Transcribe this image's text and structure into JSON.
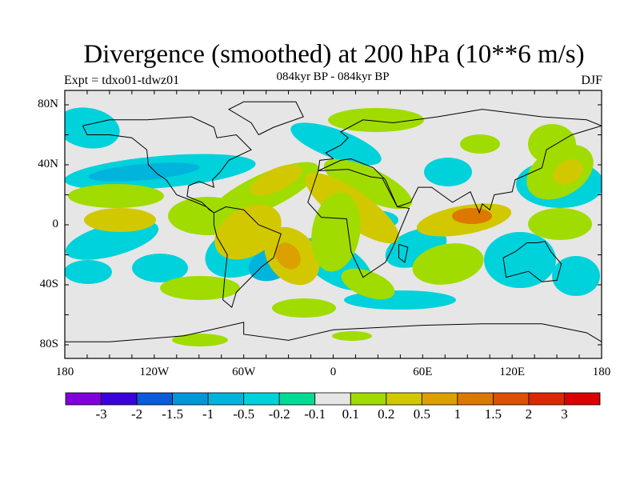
{
  "title": "Divergence (smoothed) at 200 hPa (10**6 m/s)",
  "experiment": "Expt = tdxo01-tdwz01",
  "subtitle": "084kyr BP - 084kyr BP",
  "season": "DJF",
  "chart_data": {
    "type": "heatmap",
    "variable": "Divergence (smoothed) at 200 hPa",
    "units": "10**6 m/s",
    "y_ticks": [
      "80N",
      "40N",
      "0",
      "40S",
      "80S"
    ],
    "y_values": [
      80,
      40,
      0,
      -40,
      -80
    ],
    "x_ticks": [
      "180",
      "120W",
      "60W",
      "0",
      "60E",
      "120E",
      "180"
    ],
    "x_values": [
      -180,
      -120,
      -60,
      0,
      60,
      120,
      180
    ],
    "xlim": [
      -180,
      180
    ],
    "ylim": [
      -90,
      90
    ],
    "colorbar": {
      "labels": [
        "-3",
        "-2",
        "-1.5",
        "-1",
        "-0.5",
        "-0.2",
        "-0.1",
        "0.1",
        "0.2",
        "0.5",
        "1",
        "1.5",
        "2",
        "3"
      ],
      "colors": [
        "#7f00dc",
        "#3c00dc",
        "#0a5adc",
        "#0096dc",
        "#00b4dc",
        "#00d2dc",
        "#00dc96",
        "#e6e6e6",
        "#a0dc00",
        "#d2c800",
        "#dca000",
        "#dc7800",
        "#dc5000",
        "#dc2800",
        "#dc0000"
      ]
    }
  }
}
